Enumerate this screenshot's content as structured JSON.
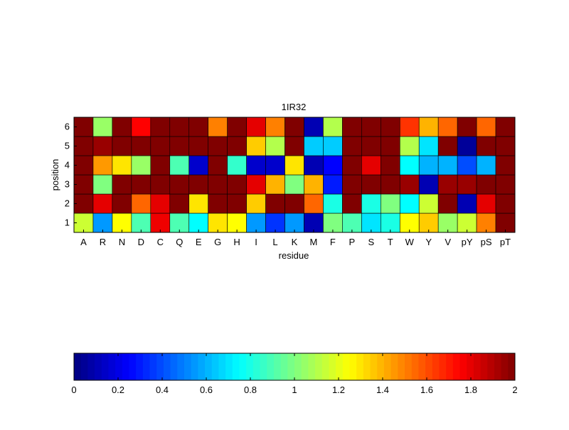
{
  "chart_data": {
    "type": "heatmap",
    "title": "1IR32",
    "xlabel": "residue",
    "ylabel": "position",
    "x_categories": [
      "A",
      "R",
      "N",
      "D",
      "C",
      "Q",
      "E",
      "G",
      "H",
      "I",
      "L",
      "K",
      "M",
      "F",
      "P",
      "S",
      "T",
      "W",
      "Y",
      "V",
      "pY",
      "pS",
      "pT"
    ],
    "y_categories": [
      "1",
      "2",
      "3",
      "4",
      "5",
      "6"
    ],
    "colormap": "jet",
    "clim": [
      0,
      2
    ],
    "colorbar": {
      "orientation": "horizontal",
      "placement": "bottom",
      "ticks": [
        0,
        0.2,
        0.4,
        0.6,
        0.8,
        1,
        1.2,
        1.4,
        1.6,
        1.8,
        2
      ],
      "tick_labels": [
        "0",
        "0.2",
        "0.4",
        "0.6",
        "0.8",
        "1",
        "1.2",
        "1.4",
        "1.6",
        "1.8",
        "2"
      ]
    },
    "values": [
      [
        1.15,
        0.55,
        1.25,
        0.9,
        1.78,
        0.9,
        0.75,
        1.3,
        1.25,
        0.55,
        0.35,
        0.55,
        0.1,
        1.0,
        0.9,
        0.7,
        0.8,
        1.25,
        1.35,
        1.05,
        1.15,
        1.5,
        2.0
      ],
      [
        2.0,
        1.8,
        2.0,
        1.55,
        1.8,
        2.0,
        1.3,
        2.0,
        2.0,
        1.35,
        2.0,
        2.0,
        1.55,
        0.8,
        2.0,
        0.8,
        1.0,
        0.75,
        1.15,
        2.0,
        0.1,
        1.8,
        2.0
      ],
      [
        2.0,
        1.0,
        2.0,
        2.0,
        2.0,
        2.0,
        2.0,
        2.0,
        2.0,
        1.8,
        1.4,
        1.0,
        1.4,
        0.3,
        2.0,
        2.0,
        2.0,
        1.95,
        0.1,
        1.95,
        1.95,
        2.0,
        2.0
      ],
      [
        2.0,
        1.45,
        1.3,
        1.05,
        2.0,
        0.9,
        0.15,
        2.0,
        0.85,
        0.15,
        0.15,
        1.3,
        0.1,
        0.25,
        2.0,
        1.8,
        2.0,
        0.75,
        0.6,
        0.6,
        0.4,
        0.6,
        2.0
      ],
      [
        2.0,
        1.95,
        2.0,
        2.0,
        2.0,
        2.0,
        2.0,
        2.0,
        2.0,
        1.35,
        1.1,
        2.0,
        0.65,
        0.65,
        2.0,
        2.0,
        2.0,
        1.1,
        0.7,
        2.0,
        0.05,
        2.0,
        2.0
      ],
      [
        2.0,
        1.05,
        2.0,
        1.75,
        2.0,
        2.0,
        2.0,
        1.5,
        2.0,
        1.8,
        1.5,
        2.0,
        0.1,
        1.1,
        2.0,
        2.0,
        2.0,
        1.65,
        1.4,
        1.55,
        2.0,
        1.55,
        2.0
      ]
    ]
  }
}
